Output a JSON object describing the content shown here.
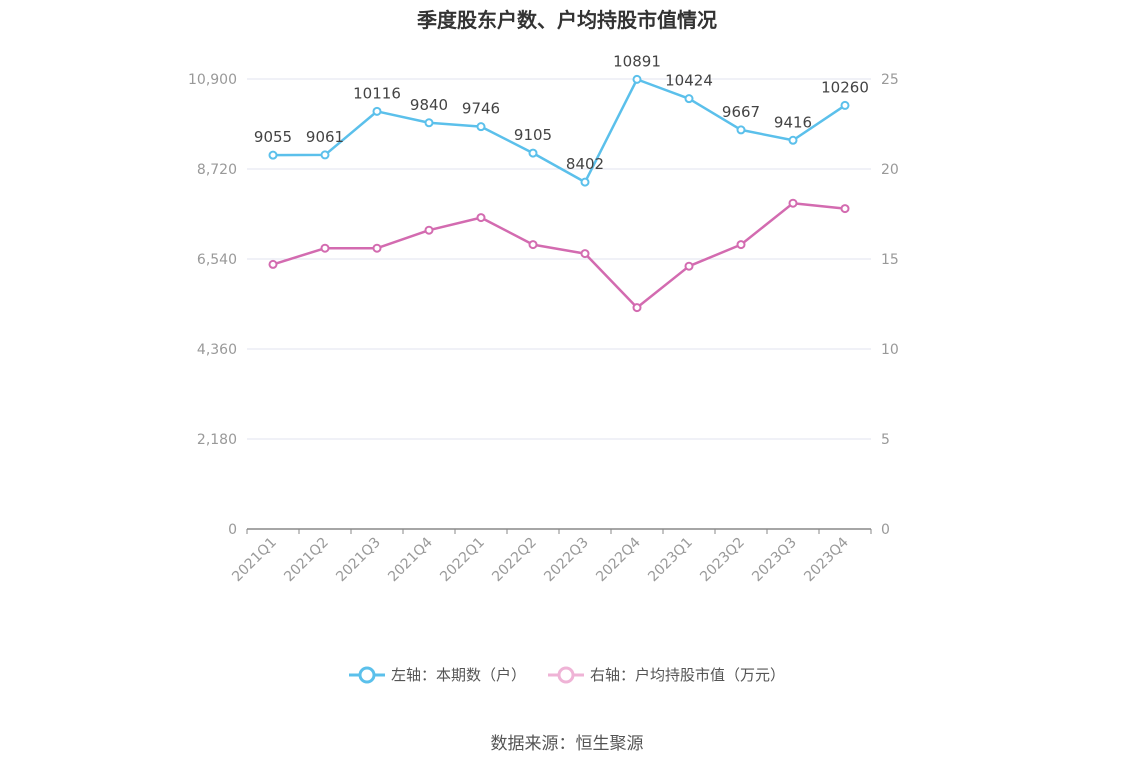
{
  "chart_data": {
    "type": "line",
    "title": "季度股东户数、户均持股市值情况",
    "categories": [
      "2021Q1",
      "2021Q2",
      "2021Q3",
      "2021Q4",
      "2022Q1",
      "2022Q2",
      "2022Q3",
      "2022Q4",
      "2023Q1",
      "2023Q2",
      "2023Q3",
      "2023Q4"
    ],
    "left_axis": {
      "ticks": [
        "0",
        "2,180",
        "4,360",
        "6,540",
        "8,720",
        "10,900"
      ],
      "ylim": [
        0,
        10900
      ]
    },
    "right_axis": {
      "ticks": [
        "0",
        "5",
        "10",
        "15",
        "20",
        "25"
      ],
      "ylim": [
        0,
        25
      ]
    },
    "series": [
      {
        "name": "左轴：本期数（户）",
        "axis": "left",
        "color": "#5bc0eb",
        "values": [
          9055,
          9061,
          10116,
          9840,
          9746,
          9105,
          8402,
          10891,
          10424,
          9667,
          9416,
          10260
        ],
        "labels": [
          "9055",
          "9061",
          "10116",
          "9840",
          "9746",
          "9105",
          "8402",
          "10891",
          "10424",
          "9667",
          "9416",
          "10260"
        ]
      },
      {
        "name": "右轴：户均持股市值（万元）",
        "axis": "right",
        "color": "#d36bb0",
        "values": [
          14.7,
          15.6,
          15.6,
          16.6,
          17.3,
          15.8,
          15.3,
          12.3,
          14.6,
          15.8,
          18.1,
          17.8
        ]
      }
    ],
    "grid": true,
    "legend_position": "bottom"
  },
  "source": "数据来源：恒生聚源"
}
